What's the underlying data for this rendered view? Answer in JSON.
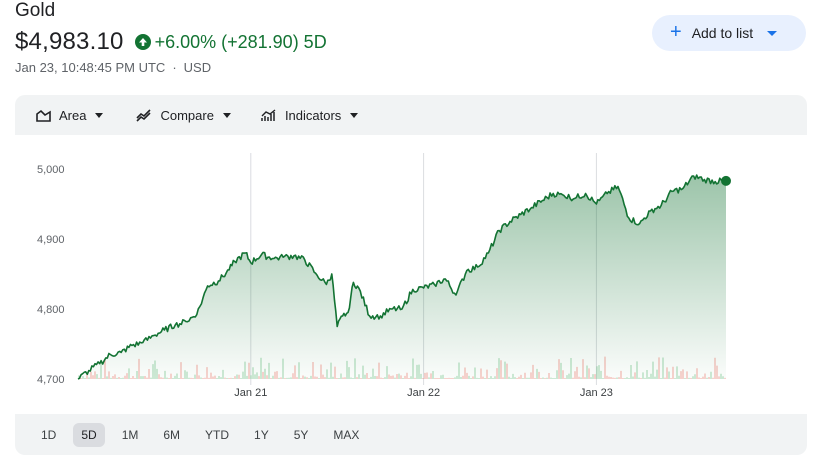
{
  "header": {
    "title": "Gold",
    "price": "$4,983.10",
    "change": "+6.00% (+281.90) 5D",
    "timestamp": "Jan 23, 10:48:45 PM UTC",
    "currency": "USD",
    "add_to_list": "Add to list"
  },
  "toolbar": {
    "area": "Area",
    "compare": "Compare",
    "indicators": "Indicators"
  },
  "ranges": [
    "1D",
    "5D",
    "1M",
    "6M",
    "YTD",
    "1Y",
    "5Y",
    "MAX"
  ],
  "active_range": "5D",
  "colors": {
    "line": "#137333",
    "accent": "#1a73e8",
    "positive": "#137333",
    "volume_up": "#81c995",
    "volume_down": "#f28b82"
  },
  "chart_data": {
    "type": "area",
    "ylim": [
      4700,
      5000
    ],
    "yticks": [
      4700,
      4800,
      4900,
      5000
    ],
    "ytick_labels": [
      "4,700",
      "4,800",
      "4,900",
      "5,000"
    ],
    "xtick_labels": [
      "Jan 21",
      "Jan 22",
      "Jan 23"
    ],
    "xtick_positions": [
      32,
      64,
      96
    ],
    "xlim": [
      0,
      120
    ],
    "x": [
      0,
      2,
      4,
      6,
      8,
      10,
      12,
      14,
      16,
      18,
      20,
      22,
      24,
      26,
      28,
      29,
      31,
      32,
      34,
      36,
      38,
      40,
      42,
      44,
      46,
      47,
      48,
      49,
      50,
      51,
      52,
      54,
      56,
      58,
      60,
      62,
      64,
      66,
      68,
      70,
      72,
      74,
      76,
      78,
      80,
      82,
      84,
      86,
      88,
      90,
      92,
      94,
      96,
      98,
      100,
      102,
      104,
      106,
      108,
      110,
      112,
      114,
      116,
      118,
      120
    ],
    "y": [
      4700,
      4712,
      4722,
      4735,
      4738,
      4748,
      4752,
      4762,
      4770,
      4777,
      4782,
      4792,
      4833,
      4840,
      4856,
      4868,
      4880,
      4866,
      4878,
      4872,
      4874,
      4876,
      4870,
      4851,
      4835,
      4850,
      4775,
      4790,
      4795,
      4838,
      4830,
      4790,
      4790,
      4800,
      4800,
      4828,
      4830,
      4835,
      4843,
      4820,
      4855,
      4860,
      4880,
      4912,
      4925,
      4935,
      4945,
      4955,
      4965,
      4962,
      4958,
      4965,
      4950,
      4965,
      4975,
      4930,
      4922,
      4940,
      4948,
      4968,
      4972,
      4990,
      4985,
      4982,
      4983
    ]
  }
}
